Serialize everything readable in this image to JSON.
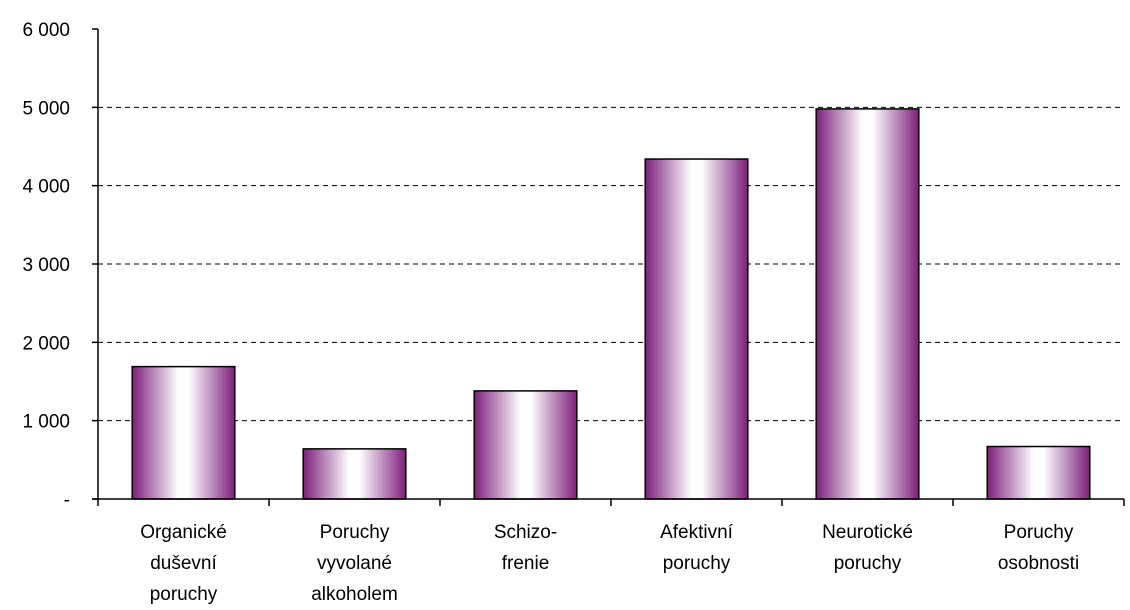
{
  "chart_data": {
    "type": "bar",
    "categories": [
      [
        "Organické",
        "duševní",
        "poruchy"
      ],
      [
        "Poruchy",
        "vyvolané",
        "alkoholem"
      ],
      [
        "Schizo-",
        "frenie"
      ],
      [
        "Afektivní",
        "poruchy"
      ],
      [
        "Neurotické",
        "poruchy"
      ],
      [
        "Poruchy",
        "osobnosti"
      ]
    ],
    "values": [
      1690,
      640,
      1380,
      4340,
      4980,
      670
    ],
    "ylim": [
      0,
      6000
    ],
    "yticks": [
      {
        "value": 0,
        "label": "-"
      },
      {
        "value": 1000,
        "label": "1 000"
      },
      {
        "value": 2000,
        "label": "2 000"
      },
      {
        "value": 3000,
        "label": "3 000"
      },
      {
        "value": 4000,
        "label": "4 000"
      },
      {
        "value": 5000,
        "label": "5 000"
      },
      {
        "value": 6000,
        "label": "6 000"
      }
    ],
    "grid": "horizontal dashed",
    "legend": "none",
    "colors": {
      "bar_edge": "#7b1f7b",
      "bar_center": "#ffffff",
      "axis": "#000000",
      "grid": "#000000"
    }
  }
}
